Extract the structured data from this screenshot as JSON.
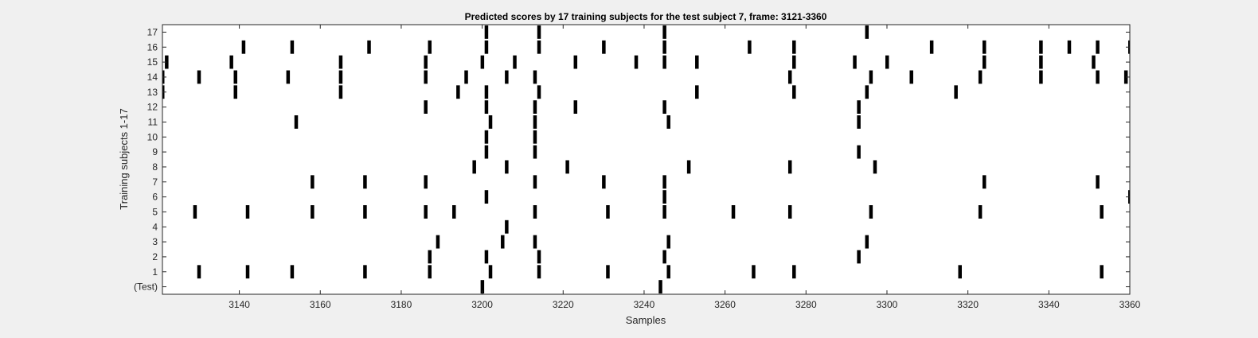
{
  "chart_data": {
    "type": "raster",
    "title": "Predicted scores by 17 training subjects for the test subject 7, frame: 3121-3360",
    "xlabel": "Samples",
    "ylabel": "Training subjects 1-17",
    "xlim": [
      3121,
      3360
    ],
    "xticks": [
      3140,
      3160,
      3180,
      3200,
      3220,
      3240,
      3260,
      3280,
      3300,
      3320,
      3340,
      3360
    ],
    "grid": false,
    "rows": [
      {
        "label": "(Test)",
        "events": [
          3200,
          3244
        ]
      },
      {
        "label": "1",
        "events": [
          3130,
          3142,
          3153,
          3171,
          3187,
          3202,
          3214,
          3231,
          3246,
          3267,
          3277,
          3318,
          3353
        ]
      },
      {
        "label": "2",
        "events": [
          3187,
          3201,
          3214,
          3245,
          3293
        ]
      },
      {
        "label": "3",
        "events": [
          3189,
          3205,
          3213,
          3246,
          3295
        ]
      },
      {
        "label": "4",
        "events": [
          3206
        ]
      },
      {
        "label": "5",
        "events": [
          3129,
          3142,
          3158,
          3171,
          3186,
          3193,
          3213,
          3231,
          3245,
          3262,
          3276,
          3296,
          3323,
          3353
        ]
      },
      {
        "label": "6",
        "events": [
          3201,
          3245,
          3360
        ]
      },
      {
        "label": "7",
        "events": [
          3158,
          3171,
          3186,
          3213,
          3230,
          3245,
          3324,
          3352
        ]
      },
      {
        "label": "8",
        "events": [
          3198,
          3206,
          3221,
          3251,
          3276,
          3297
        ]
      },
      {
        "label": "9",
        "events": [
          3201,
          3213,
          3293
        ]
      },
      {
        "label": "10",
        "events": [
          3201,
          3213
        ]
      },
      {
        "label": "11",
        "events": [
          3154,
          3202,
          3213,
          3246,
          3293
        ]
      },
      {
        "label": "12",
        "events": [
          3186,
          3201,
          3213,
          3223,
          3245,
          3293
        ]
      },
      {
        "label": "13",
        "events": [
          3121,
          3139,
          3165,
          3194,
          3201,
          3214,
          3253,
          3277,
          3295,
          3317
        ]
      },
      {
        "label": "14",
        "events": [
          3121,
          3130,
          3139,
          3152,
          3165,
          3186,
          3196,
          3206,
          3213,
          3276,
          3296,
          3306,
          3323,
          3338,
          3352,
          3359
        ]
      },
      {
        "label": "15",
        "events": [
          3122,
          3138,
          3165,
          3186,
          3200,
          3208,
          3223,
          3238,
          3245,
          3253,
          3277,
          3292,
          3300,
          3324,
          3338,
          3351
        ]
      },
      {
        "label": "16",
        "events": [
          3141,
          3153,
          3172,
          3187,
          3201,
          3214,
          3230,
          3245,
          3266,
          3277,
          3311,
          3324,
          3338,
          3345,
          3352,
          3360
        ]
      },
      {
        "label": "17",
        "events": [
          3201,
          3214,
          3245,
          3295
        ]
      }
    ],
    "colors": {
      "mark": "#000000",
      "plot_bg": "#ffffff",
      "figure_bg": "#f0f0f0",
      "axis": "#262626"
    }
  }
}
